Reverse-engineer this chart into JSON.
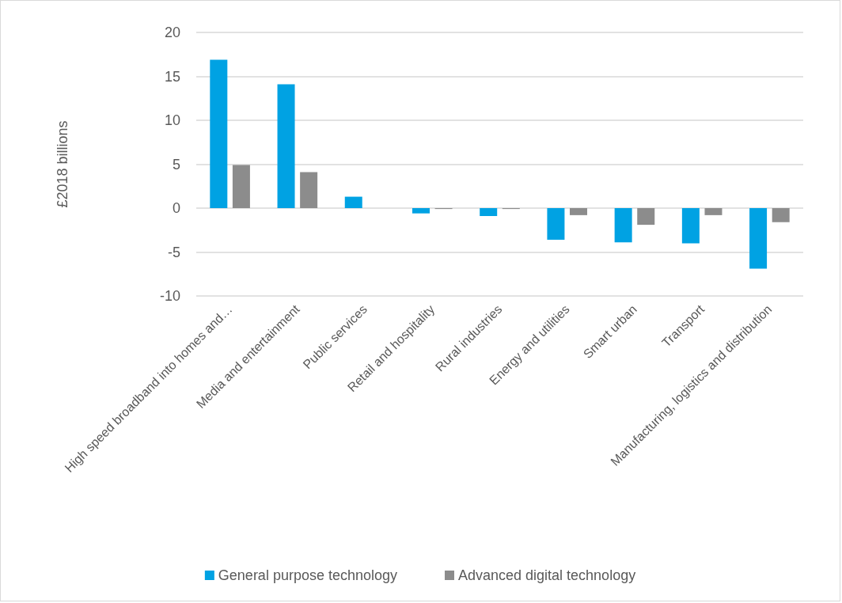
{
  "chart_data": {
    "type": "bar",
    "ylabel": "£2018 billions",
    "categories": [
      "High speed broadband into homes and…",
      "Media and entertainment",
      "Public services",
      "Retail and hospitality",
      "Rural industries",
      "Energy and utilities",
      "Smart urban",
      "Transport",
      "Manufacturing, logistics and distribution"
    ],
    "series": [
      {
        "name": "General purpose technology",
        "color": "#00a2e3",
        "values": [
          16.9,
          14.1,
          1.3,
          -0.6,
          -0.9,
          -3.6,
          -3.9,
          -4.0,
          -6.9
        ]
      },
      {
        "name": "Advanced digital technology",
        "color": "#8c8c8c",
        "values": [
          4.9,
          4.1,
          0,
          -0.1,
          -0.1,
          -0.8,
          -1.9,
          -0.8,
          -1.6
        ]
      }
    ],
    "ylim": [
      -10,
      20
    ],
    "yticks": [
      -10,
      -5,
      0,
      5,
      10,
      15,
      20
    ],
    "grid": "y",
    "legend": "bottom"
  }
}
